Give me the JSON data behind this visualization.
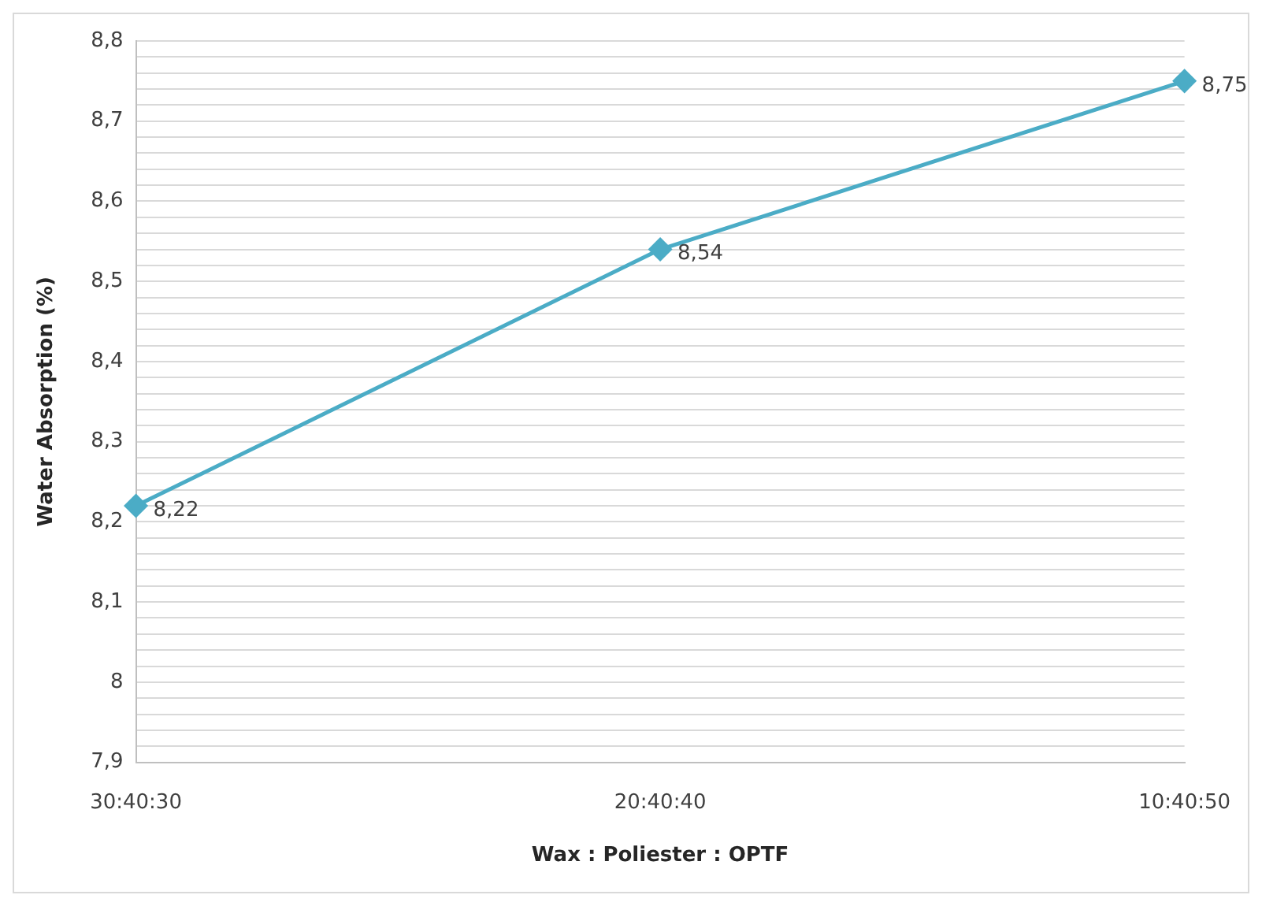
{
  "chart_data": {
    "type": "line",
    "xlabel": "Wax : Poliester : OPTF",
    "ylabel": "Water Absorption (%)",
    "categories": [
      "30:40:30",
      "20:40:40",
      "10:40:50"
    ],
    "series": [
      {
        "color": "#4bacc6",
        "values": [
          8.22,
          8.54,
          8.75
        ],
        "value_labels": [
          "8,22",
          "8,54",
          "8,75"
        ]
      }
    ],
    "ylim": [
      7.9,
      8.8
    ],
    "yticks": [
      {
        "value": 7.9,
        "label": "7,9"
      },
      {
        "value": 7.92,
        "label": null
      },
      {
        "value": 7.94,
        "label": null
      },
      {
        "value": 7.96,
        "label": null
      },
      {
        "value": 7.98,
        "label": null
      },
      {
        "value": 8,
        "label": "8"
      },
      {
        "value": 8.02,
        "label": null
      },
      {
        "value": 8.04,
        "label": null
      },
      {
        "value": 8.06,
        "label": null
      },
      {
        "value": 8.08,
        "label": null
      },
      {
        "value": 8.1,
        "label": "8,1"
      },
      {
        "value": 8.12,
        "label": null
      },
      {
        "value": 8.14,
        "label": null
      },
      {
        "value": 8.16,
        "label": null
      },
      {
        "value": 8.18,
        "label": null
      },
      {
        "value": 8.2,
        "label": "8,2"
      },
      {
        "value": 8.22,
        "label": null
      },
      {
        "value": 8.24,
        "label": null
      },
      {
        "value": 8.26,
        "label": null
      },
      {
        "value": 8.28,
        "label": null
      },
      {
        "value": 8.3,
        "label": "8,3"
      },
      {
        "value": 8.32,
        "label": null
      },
      {
        "value": 8.34,
        "label": null
      },
      {
        "value": 8.36,
        "label": null
      },
      {
        "value": 8.38,
        "label": null
      },
      {
        "value": 8.4,
        "label": "8,4"
      },
      {
        "value": 8.42,
        "label": null
      },
      {
        "value": 8.44,
        "label": null
      },
      {
        "value": 8.46,
        "label": null
      },
      {
        "value": 8.48,
        "label": null
      },
      {
        "value": 8.5,
        "label": "8,5"
      },
      {
        "value": 8.52,
        "label": null
      },
      {
        "value": 8.54,
        "label": null
      },
      {
        "value": 8.56,
        "label": null
      },
      {
        "value": 8.58,
        "label": null
      },
      {
        "value": 8.6,
        "label": "8,6"
      },
      {
        "value": 8.62,
        "label": null
      },
      {
        "value": 8.64,
        "label": null
      },
      {
        "value": 8.66,
        "label": null
      },
      {
        "value": 8.68,
        "label": null
      },
      {
        "value": 8.7,
        "label": "8,7"
      },
      {
        "value": 8.72,
        "label": null
      },
      {
        "value": 8.74,
        "label": null
      },
      {
        "value": 8.76,
        "label": null
      },
      {
        "value": 8.78,
        "label": null
      },
      {
        "value": 8.8,
        "label": "8,8"
      }
    ],
    "grid": "y",
    "legend": false,
    "marker": "diamond",
    "line_style": "solid"
  }
}
